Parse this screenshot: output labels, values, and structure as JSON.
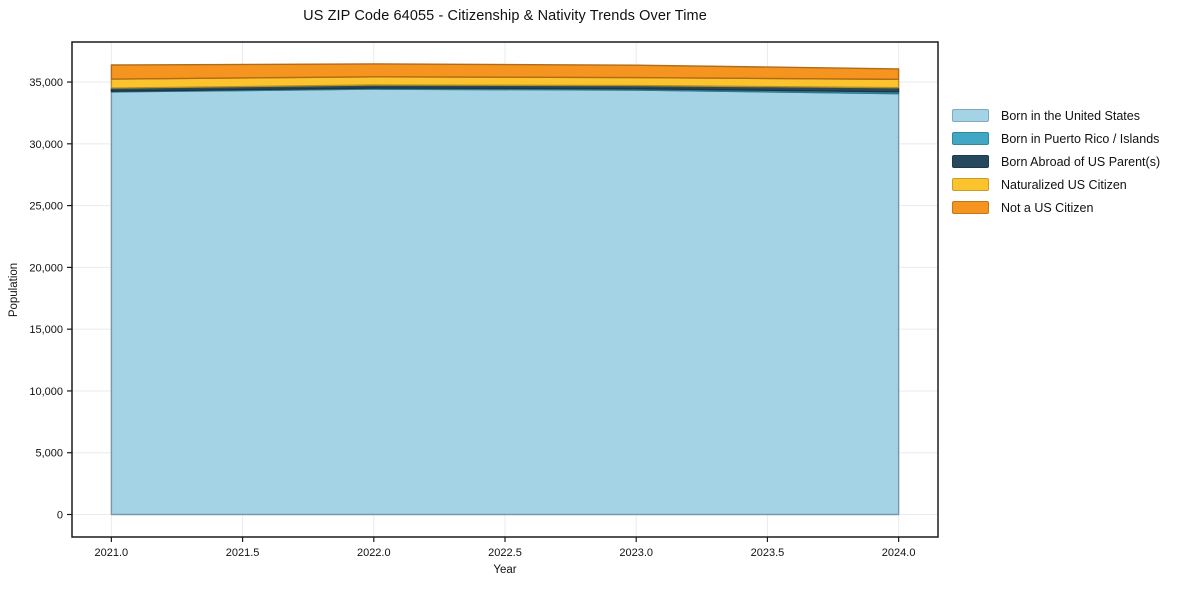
{
  "chart_data": {
    "type": "area",
    "stacked": true,
    "title": "US ZIP Code 64055 - Citizenship & Nativity Trends Over Time",
    "xlabel": "Year",
    "ylabel": "Population",
    "x": [
      2021,
      2022,
      2023,
      2024
    ],
    "series": [
      {
        "name": "Born in the United States",
        "color": "#a5d3e6",
        "values": [
          34200,
          34430,
          34350,
          34060
        ]
      },
      {
        "name": "Born in Puerto Rico / Islands",
        "color": "#41a7c4",
        "values": [
          60,
          90,
          110,
          150
        ]
      },
      {
        "name": "Born Abroad of US Parent(s)",
        "color": "#27495e",
        "values": [
          250,
          240,
          250,
          330
        ]
      },
      {
        "name": "Naturalized US Citizen",
        "color": "#fbc42f",
        "values": [
          730,
          660,
          650,
          680
        ]
      },
      {
        "name": "Not a US Citizen",
        "color": "#f69420",
        "values": [
          1140,
          1050,
          1000,
          840
        ]
      }
    ],
    "x_ticks": [
      2021.0,
      2021.5,
      2022.0,
      2022.5,
      2023.0,
      2023.5,
      2024.0
    ],
    "y_ticks": [
      0,
      5000,
      10000,
      15000,
      20000,
      25000,
      30000,
      35000
    ],
    "xlim": [
      2020.85,
      2024.15
    ],
    "ylim": [
      -1820,
      38240
    ],
    "grid": true,
    "legend_position": "right-outside",
    "colors": {
      "background": "#ffffff",
      "grid": "#ebebeb",
      "spine": "#1a1a1a",
      "text": "#111111"
    }
  }
}
